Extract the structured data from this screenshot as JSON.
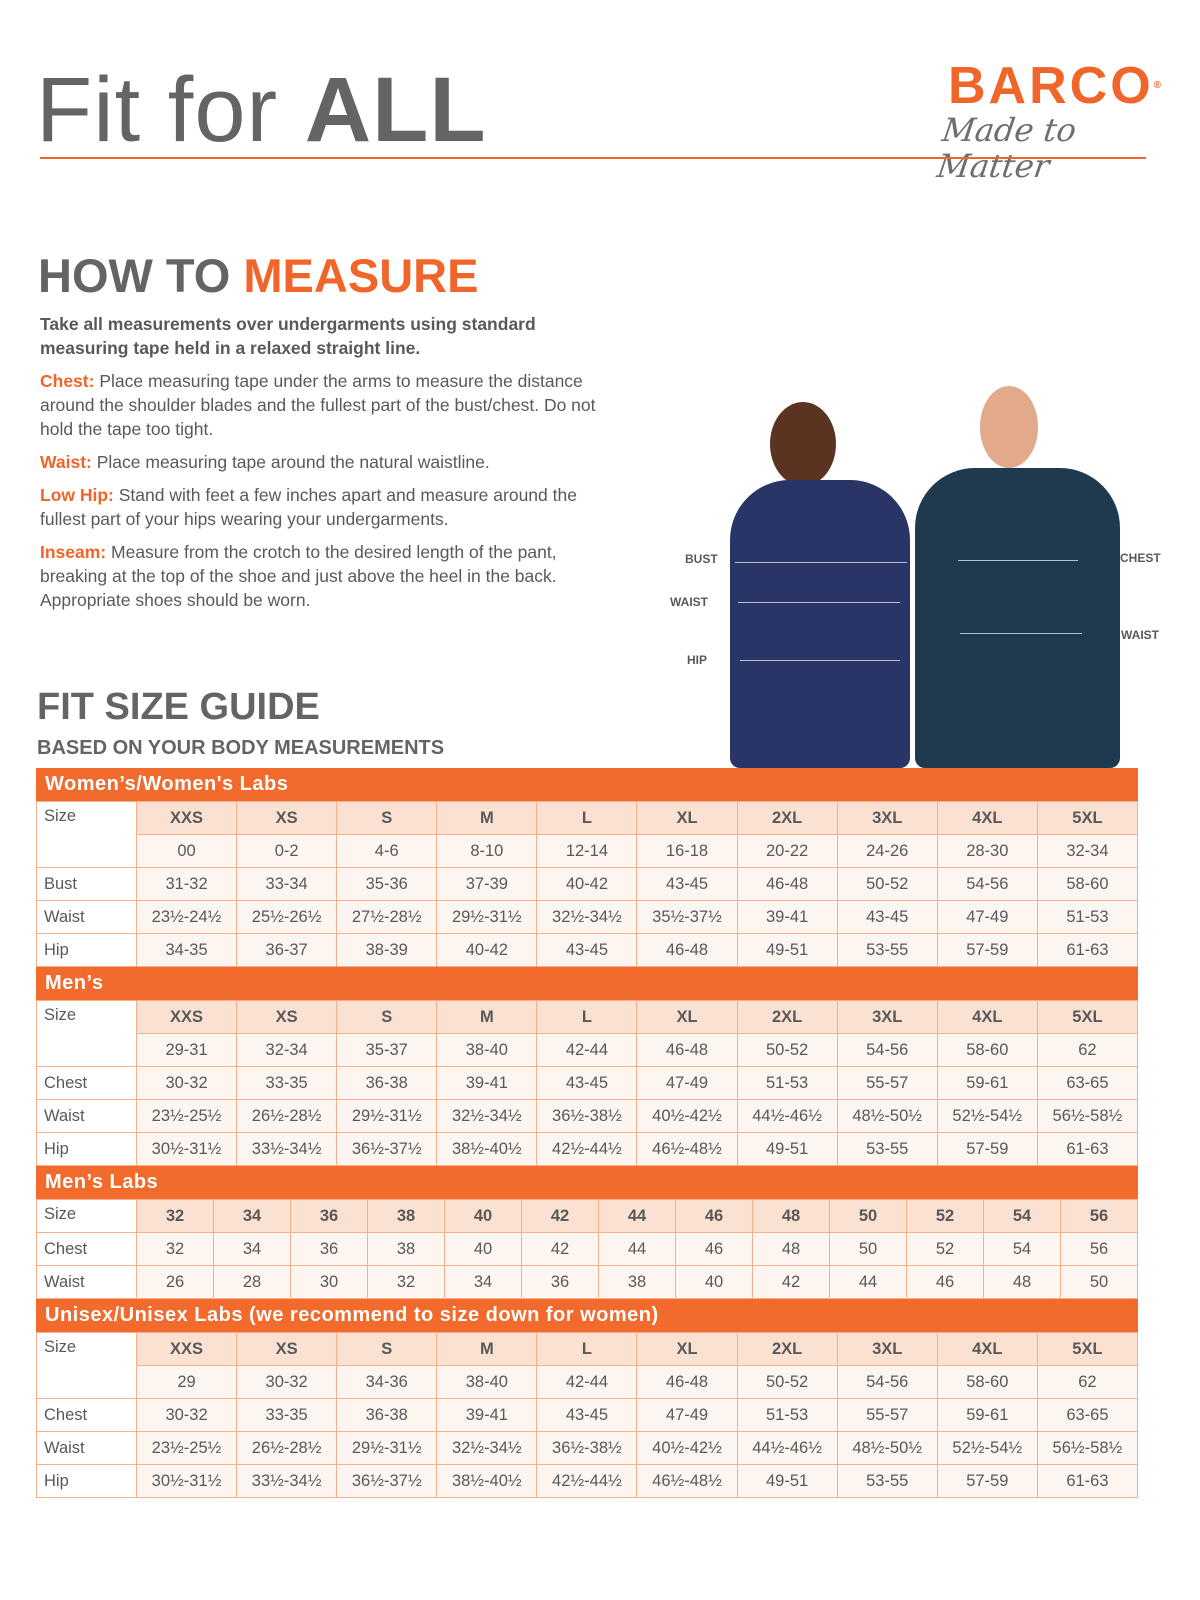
{
  "header": {
    "title_light": "Fit for",
    "title_bold": "ALL",
    "logo_brand": "BARCO",
    "logo_reg": "®",
    "logo_tagline": "Made to Matter",
    "accent": "#f0662a"
  },
  "measure": {
    "heading_a": "HOW TO",
    "heading_b": "MEASURE",
    "lead": "Take all measurements over undergarments using standard measuring tape held in a relaxed straight line.",
    "items": [
      {
        "label": "Chest:",
        "text": "Place measuring tape under the arms to measure the distance around the shoulder blades and the fullest part of the bust/chest. Do not hold the tape too tight."
      },
      {
        "label": "Waist:",
        "text": "Place measuring tape around the natural waistline."
      },
      {
        "label": "Low Hip:",
        "text": "Stand with feet a few inches apart and measure around the fullest part of your hips wearing your undergarments."
      },
      {
        "label": "Inseam:",
        "text": "Measure from the crotch to the desired length of the pant, breaking at the top of the shoe and just above the heel in the back. Appropriate shoes should be worn."
      }
    ]
  },
  "figure": {
    "labels": {
      "bust": "BUST",
      "waist_w": "WAIST",
      "hip": "HIP",
      "chest": "CHEST",
      "waist_m": "WAIST"
    }
  },
  "guide": {
    "title": "FIT SIZE GUIDE",
    "subtitle": "BASED ON YOUR BODY MEASUREMENTS"
  },
  "tables": [
    {
      "title": "Women’s/Women's Labs",
      "size_label": "Size",
      "sizes": [
        "XXS",
        "XS",
        "S",
        "M",
        "L",
        "XL",
        "2XL",
        "3XL",
        "4XL",
        "5XL"
      ],
      "alt": [
        "00",
        "0-2",
        "4-6",
        "8-10",
        "12-14",
        "16-18",
        "20-22",
        "24-26",
        "28-30",
        "32-34"
      ],
      "rows": [
        {
          "label": "Bust",
          "values": [
            "31-32",
            "33-34",
            "35-36",
            "37-39",
            "40-42",
            "43-45",
            "46-48",
            "50-52",
            "54-56",
            "58-60"
          ]
        },
        {
          "label": "Waist",
          "values": [
            "23½-24½",
            "25½-26½",
            "27½-28½",
            "29½-31½",
            "32½-34½",
            "35½-37½",
            "39-41",
            "43-45",
            "47-49",
            "51-53"
          ]
        },
        {
          "label": "Hip",
          "values": [
            "34-35",
            "36-37",
            "38-39",
            "40-42",
            "43-45",
            "46-48",
            "49-51",
            "53-55",
            "57-59",
            "61-63"
          ]
        }
      ]
    },
    {
      "title": "Men’s",
      "size_label": "Size",
      "sizes": [
        "XXS",
        "XS",
        "S",
        "M",
        "L",
        "XL",
        "2XL",
        "3XL",
        "4XL",
        "5XL"
      ],
      "alt": [
        "29-31",
        "32-34",
        "35-37",
        "38-40",
        "42-44",
        "46-48",
        "50-52",
        "54-56",
        "58-60",
        "62"
      ],
      "rows": [
        {
          "label": "Chest",
          "values": [
            "30-32",
            "33-35",
            "36-38",
            "39-41",
            "43-45",
            "47-49",
            "51-53",
            "55-57",
            "59-61",
            "63-65"
          ]
        },
        {
          "label": "Waist",
          "values": [
            "23½-25½",
            "26½-28½",
            "29½-31½",
            "32½-34½",
            "36½-38½",
            "40½-42½",
            "44½-46½",
            "48½-50½",
            "52½-54½",
            "56½-58½"
          ]
        },
        {
          "label": "Hip",
          "values": [
            "30½-31½",
            "33½-34½",
            "36½-37½",
            "38½-40½",
            "42½-44½",
            "46½-48½",
            "49-51",
            "53-55",
            "57-59",
            "61-63"
          ]
        }
      ]
    },
    {
      "title": "Men’s Labs",
      "size_label": "Size",
      "sizes": [
        "32",
        "34",
        "36",
        "38",
        "40",
        "42",
        "44",
        "46",
        "48",
        "50",
        "52",
        "54",
        "56"
      ],
      "rows": [
        {
          "label": "Chest",
          "values": [
            "32",
            "34",
            "36",
            "38",
            "40",
            "42",
            "44",
            "46",
            "48",
            "50",
            "52",
            "54",
            "56"
          ]
        },
        {
          "label": "Waist",
          "values": [
            "26",
            "28",
            "30",
            "32",
            "34",
            "36",
            "38",
            "40",
            "42",
            "44",
            "46",
            "48",
            "50"
          ]
        }
      ]
    },
    {
      "title": "Unisex/Unisex Labs (we recommend to size down for women)",
      "size_label": "Size",
      "sizes": [
        "XXS",
        "XS",
        "S",
        "M",
        "L",
        "XL",
        "2XL",
        "3XL",
        "4XL",
        "5XL"
      ],
      "alt": [
        "29",
        "30-32",
        "34-36",
        "38-40",
        "42-44",
        "46-48",
        "50-52",
        "54-56",
        "58-60",
        "62"
      ],
      "rows": [
        {
          "label": "Chest",
          "values": [
            "30-32",
            "33-35",
            "36-38",
            "39-41",
            "43-45",
            "47-49",
            "51-53",
            "55-57",
            "59-61",
            "63-65"
          ]
        },
        {
          "label": "Waist",
          "values": [
            "23½-25½",
            "26½-28½",
            "29½-31½",
            "32½-34½",
            "36½-38½",
            "40½-42½",
            "44½-46½",
            "48½-50½",
            "52½-54½",
            "56½-58½"
          ]
        },
        {
          "label": "Hip",
          "values": [
            "30½-31½",
            "33½-34½",
            "36½-37½",
            "38½-40½",
            "42½-44½",
            "46½-48½",
            "49-51",
            "53-55",
            "57-59",
            "61-63"
          ]
        }
      ]
    }
  ]
}
